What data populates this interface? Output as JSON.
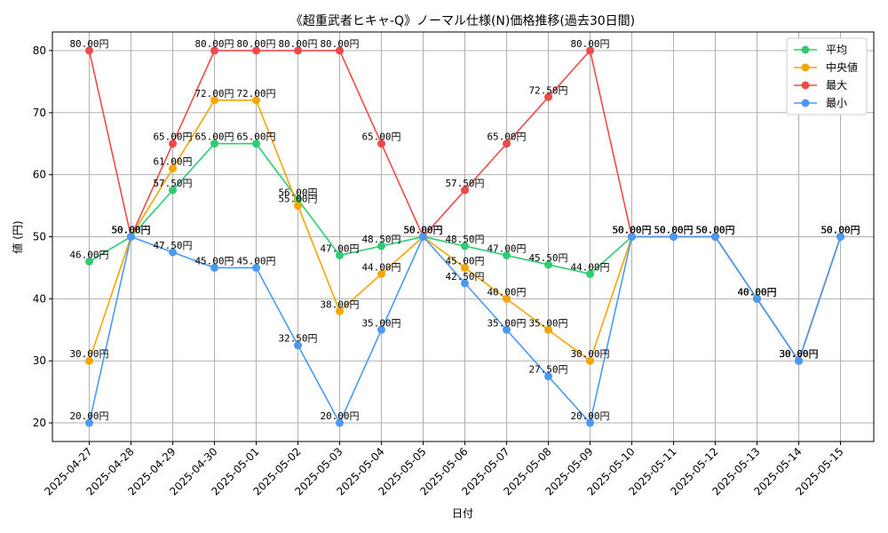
{
  "chart_data": {
    "type": "line",
    "title": "《超重武者ヒキャ-Q》ノーマル仕様(N)価格推移(過去30日間)",
    "xlabel": "日付",
    "ylabel": "値 (円)",
    "ylim": [
      17,
      83
    ],
    "yticks": [
      20,
      30,
      40,
      50,
      60,
      70,
      80
    ],
    "grid": true,
    "legend_position": "top-right",
    "value_suffix": "円",
    "categories": [
      "2025-04-27",
      "2025-04-28",
      "2025-04-29",
      "2025-04-30",
      "2025-05-01",
      "2025-05-02",
      "2025-05-03",
      "2025-05-04",
      "2025-05-05",
      "2025-05-06",
      "2025-05-07",
      "2025-05-08",
      "2025-05-09",
      "2025-05-10",
      "2025-05-11",
      "2025-05-12",
      "2025-05-13",
      "2025-05-14",
      "2025-05-15"
    ],
    "series": [
      {
        "name": "平均",
        "color": "#2ecc71",
        "values": [
          46,
          50,
          57.5,
          65,
          65,
          56,
          47,
          48.5,
          50,
          48.5,
          47,
          45.5,
          44,
          50,
          50,
          50,
          40,
          30,
          50
        ]
      },
      {
        "name": "中央値",
        "color": "#f5a500",
        "values": [
          30,
          50,
          61,
          72,
          72,
          55,
          38,
          44,
          50,
          45,
          40,
          35,
          30,
          50,
          50,
          50,
          40,
          30,
          50
        ]
      },
      {
        "name": "最大",
        "color": "#ef4a4a",
        "values": [
          80,
          50,
          65,
          80,
          80,
          80,
          80,
          65,
          50,
          57.5,
          65,
          72.5,
          80,
          50,
          50,
          50,
          40,
          30,
          50
        ]
      },
      {
        "name": "最小",
        "color": "#4a9af5",
        "values": [
          20,
          50,
          47.5,
          45,
          45,
          32.5,
          20,
          35,
          50,
          42.5,
          35,
          27.5,
          20,
          50,
          50,
          50,
          40,
          30,
          50
        ]
      }
    ]
  }
}
